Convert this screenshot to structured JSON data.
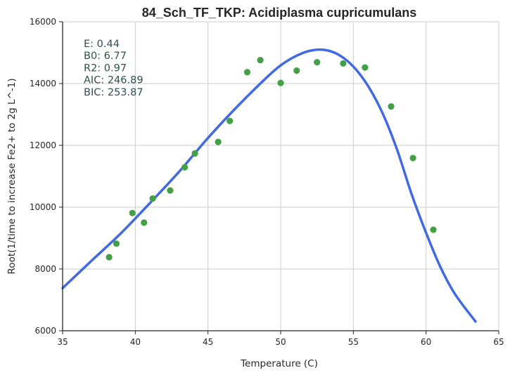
{
  "chart_data": {
    "type": "scatter",
    "title": "84_Sch_TF_TKP: Acidiplasma cupricumulans",
    "xlabel": "Temperature (C)",
    "ylabel": "Root(1/time to increase Fe2+ to 2g L^-1)",
    "xlim": [
      35,
      65
    ],
    "ylim": [
      6000,
      16000
    ],
    "xticks": [
      35,
      40,
      45,
      50,
      55,
      60,
      65
    ],
    "yticks": [
      6000,
      8000,
      10000,
      12000,
      14000,
      16000
    ],
    "grid": true,
    "colors": {
      "points": "#43a047",
      "curve": "#4169e1",
      "grid": "#cccccc",
      "axis": "#262626",
      "stats": "#2f4f4f"
    },
    "stats": [
      "E:  0.44",
      "B0:  6.77",
      "R2:  0.97",
      "AIC: 246.89",
      "BIC: 253.87"
    ],
    "series": [
      {
        "kind": "points",
        "x": [
          38.2,
          38.7,
          39.8,
          40.6,
          41.2,
          42.4,
          43.4,
          44.1,
          45.7,
          46.5,
          47.7,
          48.6,
          50.0,
          51.1,
          52.5,
          54.3,
          55.8,
          57.6,
          59.1,
          60.5
        ],
        "y": [
          8380,
          8820,
          9810,
          9500,
          10280,
          10540,
          11290,
          11740,
          12110,
          12790,
          14370,
          14760,
          14020,
          14420,
          14690,
          14650,
          14520,
          13260,
          11590,
          9270
        ]
      },
      {
        "kind": "fit",
        "x": [
          35.0,
          37.0,
          39.0,
          41.0,
          43.0,
          45.0,
          47.0,
          49.0,
          50.0,
          51.0,
          52.0,
          53.0,
          54.0,
          55.0,
          56.0,
          57.0,
          58.0,
          59.0,
          60.0,
          61.0,
          62.0,
          63.4
        ],
        "y": [
          7380,
          8270,
          9150,
          10130,
          11140,
          12240,
          13250,
          14180,
          14590,
          14880,
          15060,
          15090,
          14930,
          14550,
          13930,
          13050,
          11870,
          10430,
          9170,
          8050,
          7180,
          6300
        ]
      }
    ]
  }
}
